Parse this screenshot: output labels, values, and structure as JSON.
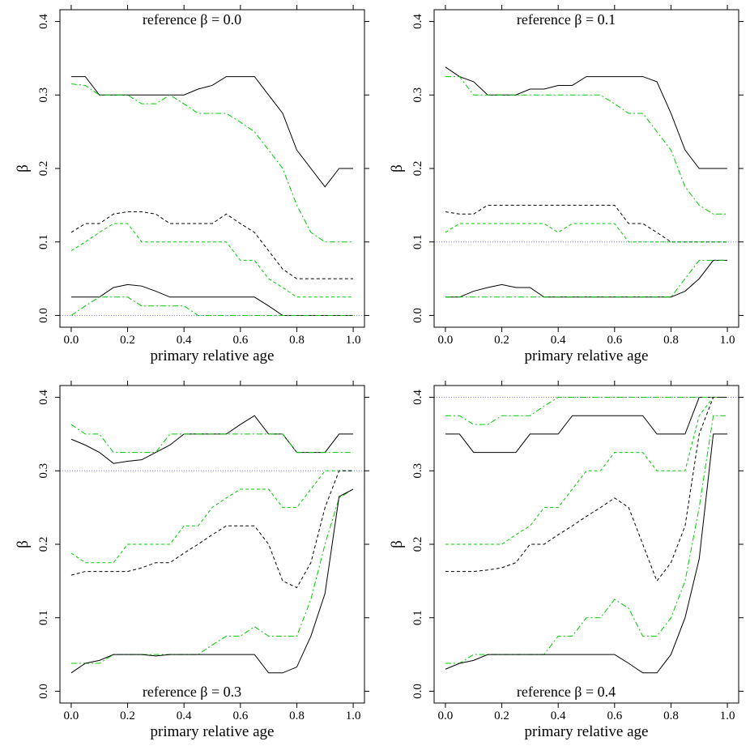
{
  "chart_data": [
    {
      "type": "line",
      "title": "reference β = 0.0",
      "title_position": "top",
      "xlabel": "primary relative age",
      "ylabel": "β",
      "x": [
        0,
        0.05,
        0.1,
        0.15,
        0.2,
        0.25,
        0.3,
        0.35,
        0.4,
        0.45,
        0.5,
        0.55,
        0.6,
        0.65,
        0.7,
        0.75,
        0.8,
        0.85,
        0.9,
        0.95,
        1
      ],
      "xlim": [
        -0.04,
        1.04
      ],
      "ylim": [
        -0.016,
        0.416
      ],
      "xticks": [
        {
          "value": 0,
          "label": "0.0"
        },
        {
          "value": 0.2,
          "label": "0.2"
        },
        {
          "value": 0.4,
          "label": "0.4"
        },
        {
          "value": 0.6,
          "label": "0.6"
        },
        {
          "value": 0.8,
          "label": "0.8"
        },
        {
          "value": 1,
          "label": "1.0"
        }
      ],
      "yticks": [
        {
          "value": 0,
          "label": "0.0"
        },
        0.1,
        0.2,
        0.3,
        0.4
      ],
      "reference_line": {
        "value": 0,
        "color": "#8080ff"
      },
      "series": [
        {
          "color": "#000000",
          "dash": "solid",
          "values": [
            0.325,
            0.325,
            0.3,
            0.3,
            0.3,
            0.3,
            0.3,
            0.3,
            0.3,
            0.308,
            0.313,
            0.325,
            0.325,
            0.325,
            0.3,
            0.275,
            0.225,
            0.2,
            0.175,
            0.2,
            0.2
          ]
        },
        {
          "color": "#00cc00",
          "dash": "dotdash",
          "values": [
            0.315,
            0.313,
            0.3,
            0.3,
            0.3,
            0.288,
            0.288,
            0.3,
            0.288,
            0.275,
            0.275,
            0.275,
            0.263,
            0.25,
            0.225,
            0.2,
            0.15,
            0.113,
            0.1,
            0.1,
            0.1
          ]
        },
        {
          "color": "#000000",
          "dash": "dashed",
          "values": [
            0.113,
            0.125,
            0.125,
            0.138,
            0.141,
            0.141,
            0.138,
            0.125,
            0.125,
            0.125,
            0.125,
            0.138,
            0.125,
            0.113,
            0.088,
            0.063,
            0.05,
            0.05,
            0.05,
            0.05,
            0.05
          ]
        },
        {
          "color": "#00cc00",
          "dash": "dashed",
          "values": [
            0.088,
            0.1,
            0.113,
            0.125,
            0.125,
            0.1,
            0.1,
            0.1,
            0.1,
            0.1,
            0.1,
            0.1,
            0.075,
            0.075,
            0.05,
            0.038,
            0.025,
            0.025,
            0.025,
            0.025,
            0.025
          ]
        },
        {
          "color": "#000000",
          "dash": "solid",
          "values": [
            0.025,
            0.025,
            0.025,
            0.038,
            0.042,
            0.04,
            0.033,
            0.025,
            0.025,
            0.025,
            0.025,
            0.025,
            0.025,
            0.025,
            0.013,
            0,
            0,
            0,
            0,
            0,
            0
          ]
        },
        {
          "color": "#00cc00",
          "dash": "dotdash",
          "values": [
            0,
            0.013,
            0.025,
            0.025,
            0.025,
            0.013,
            0.013,
            0.013,
            0.013,
            0,
            0,
            0,
            0,
            0,
            0,
            0,
            0,
            0,
            0,
            0,
            0
          ]
        }
      ]
    },
    {
      "type": "line",
      "title": "reference β = 0.1",
      "title_position": "top",
      "xlabel": "primary relative age",
      "ylabel": "β",
      "x": [
        0,
        0.05,
        0.1,
        0.15,
        0.2,
        0.25,
        0.3,
        0.35,
        0.4,
        0.45,
        0.5,
        0.55,
        0.6,
        0.65,
        0.7,
        0.75,
        0.8,
        0.85,
        0.9,
        0.95,
        1
      ],
      "xlim": [
        -0.04,
        1.04
      ],
      "ylim": [
        -0.016,
        0.416
      ],
      "xticks": [
        {
          "value": 0,
          "label": "0.0"
        },
        {
          "value": 0.2,
          "label": "0.2"
        },
        {
          "value": 0.4,
          "label": "0.4"
        },
        {
          "value": 0.6,
          "label": "0.6"
        },
        {
          "value": 0.8,
          "label": "0.8"
        },
        {
          "value": 1,
          "label": "1.0"
        }
      ],
      "yticks": [
        {
          "value": 0,
          "label": "0.0"
        },
        0.1,
        0.2,
        0.3,
        0.4
      ],
      "reference_line": {
        "value": 0.1,
        "color": "#8080ff"
      },
      "series": [
        {
          "color": "#000000",
          "dash": "solid",
          "values": [
            0.338,
            0.325,
            0.318,
            0.3,
            0.3,
            0.3,
            0.308,
            0.308,
            0.313,
            0.313,
            0.325,
            0.325,
            0.325,
            0.325,
            0.325,
            0.318,
            0.275,
            0.225,
            0.2,
            0.2,
            0.2
          ]
        },
        {
          "color": "#00cc00",
          "dash": "dotdash",
          "values": [
            0.325,
            0.325,
            0.3,
            0.3,
            0.3,
            0.3,
            0.3,
            0.3,
            0.3,
            0.3,
            0.3,
            0.3,
            0.288,
            0.275,
            0.275,
            0.25,
            0.225,
            0.175,
            0.15,
            0.138,
            0.138
          ]
        },
        {
          "color": "#000000",
          "dash": "dashed",
          "values": [
            0.141,
            0.138,
            0.138,
            0.15,
            0.15,
            0.15,
            0.15,
            0.15,
            0.15,
            0.15,
            0.15,
            0.15,
            0.15,
            0.125,
            0.125,
            0.113,
            0.1,
            0.1,
            0.1,
            0.1,
            0.1
          ]
        },
        {
          "color": "#00cc00",
          "dash": "dashed",
          "values": [
            0.113,
            0.125,
            0.125,
            0.125,
            0.125,
            0.125,
            0.125,
            0.125,
            0.113,
            0.125,
            0.125,
            0.125,
            0.125,
            0.1,
            0.1,
            0.1,
            0.1,
            0.1,
            0.1,
            0.1,
            0.1
          ]
        },
        {
          "color": "#000000",
          "dash": "solid",
          "values": [
            0.025,
            0.025,
            0.033,
            0.038,
            0.042,
            0.038,
            0.038,
            0.025,
            0.025,
            0.025,
            0.025,
            0.025,
            0.025,
            0.025,
            0.025,
            0.025,
            0.025,
            0.033,
            0.05,
            0.075,
            0.075
          ]
        },
        {
          "color": "#00cc00",
          "dash": "dotdash",
          "values": [
            0.025,
            0.025,
            0.025,
            0.025,
            0.025,
            0.025,
            0.025,
            0.025,
            0.025,
            0.025,
            0.025,
            0.025,
            0.025,
            0.025,
            0.025,
            0.025,
            0.025,
            0.05,
            0.075,
            0.075,
            0.075
          ]
        }
      ]
    },
    {
      "type": "line",
      "title": "reference β = 0.3",
      "title_position": "bottom",
      "xlabel": "primary relative age",
      "ylabel": "β",
      "x": [
        0,
        0.05,
        0.1,
        0.15,
        0.2,
        0.25,
        0.3,
        0.35,
        0.4,
        0.45,
        0.5,
        0.55,
        0.6,
        0.65,
        0.7,
        0.75,
        0.8,
        0.85,
        0.9,
        0.95,
        1
      ],
      "xlim": [
        -0.04,
        1.04
      ],
      "ylim": [
        -0.016,
        0.416
      ],
      "xticks": [
        {
          "value": 0,
          "label": "0.0"
        },
        {
          "value": 0.2,
          "label": "0.2"
        },
        {
          "value": 0.4,
          "label": "0.4"
        },
        {
          "value": 0.6,
          "label": "0.6"
        },
        {
          "value": 0.8,
          "label": "0.8"
        },
        {
          "value": 1,
          "label": "1.0"
        }
      ],
      "yticks": [
        {
          "value": 0,
          "label": "0.0"
        },
        0.1,
        0.2,
        0.3,
        0.4
      ],
      "reference_line": {
        "value": 0.3,
        "color": "#8080ff"
      },
      "series": [
        {
          "color": "#000000",
          "dash": "solid",
          "values": [
            0.343,
            0.335,
            0.325,
            0.31,
            0.313,
            0.315,
            0.325,
            0.335,
            0.35,
            0.35,
            0.35,
            0.35,
            0.363,
            0.375,
            0.35,
            0.35,
            0.325,
            0.325,
            0.325,
            0.35,
            0.35
          ]
        },
        {
          "color": "#00cc00",
          "dash": "dotdash",
          "values": [
            0.363,
            0.35,
            0.35,
            0.325,
            0.325,
            0.325,
            0.325,
            0.35,
            0.35,
            0.35,
            0.35,
            0.35,
            0.35,
            0.35,
            0.35,
            0.35,
            0.325,
            0.325,
            0.325,
            0.325,
            0.325
          ]
        },
        {
          "color": "#00cc00",
          "dash": "dashed",
          "values": [
            0.188,
            0.175,
            0.175,
            0.175,
            0.2,
            0.2,
            0.2,
            0.2,
            0.225,
            0.225,
            0.25,
            0.263,
            0.275,
            0.275,
            0.275,
            0.25,
            0.25,
            0.275,
            0.3,
            0.3,
            0.3
          ]
        },
        {
          "color": "#000000",
          "dash": "dashed",
          "values": [
            0.158,
            0.163,
            0.163,
            0.163,
            0.163,
            0.168,
            0.175,
            0.175,
            0.188,
            0.2,
            0.213,
            0.225,
            0.225,
            0.225,
            0.2,
            0.15,
            0.141,
            0.175,
            0.25,
            0.3,
            0.3
          ]
        },
        {
          "color": "#00cc00",
          "dash": "dotdash",
          "values": [
            0.038,
            0.038,
            0.038,
            0.05,
            0.05,
            0.05,
            0.05,
            0.05,
            0.05,
            0.05,
            0.063,
            0.075,
            0.075,
            0.088,
            0.075,
            0.075,
            0.075,
            0.125,
            0.2,
            0.263,
            0.275
          ]
        },
        {
          "color": "#000000",
          "dash": "solid",
          "values": [
            0.025,
            0.038,
            0.042,
            0.05,
            0.05,
            0.05,
            0.048,
            0.05,
            0.05,
            0.05,
            0.05,
            0.05,
            0.05,
            0.05,
            0.025,
            0.025,
            0.033,
            0.075,
            0.133,
            0.265,
            0.275
          ]
        }
      ]
    },
    {
      "type": "line",
      "title": "reference β = 0.4",
      "title_position": "bottom",
      "xlabel": "primary relative age",
      "ylabel": "β",
      "x": [
        0,
        0.05,
        0.1,
        0.15,
        0.2,
        0.25,
        0.3,
        0.35,
        0.4,
        0.45,
        0.5,
        0.55,
        0.6,
        0.65,
        0.7,
        0.75,
        0.8,
        0.85,
        0.9,
        0.95,
        1
      ],
      "xlim": [
        -0.04,
        1.04
      ],
      "ylim": [
        -0.016,
        0.416
      ],
      "xticks": [
        {
          "value": 0,
          "label": "0.0"
        },
        {
          "value": 0.2,
          "label": "0.2"
        },
        {
          "value": 0.4,
          "label": "0.4"
        },
        {
          "value": 0.6,
          "label": "0.6"
        },
        {
          "value": 0.8,
          "label": "0.8"
        },
        {
          "value": 1,
          "label": "1.0"
        }
      ],
      "yticks": [
        {
          "value": 0,
          "label": "0.0"
        },
        0.1,
        0.2,
        0.3,
        0.4
      ],
      "reference_line": {
        "value": 0.4,
        "color": "#8080ff"
      },
      "series": [
        {
          "color": "#000000",
          "dash": "solid",
          "values": [
            0.35,
            0.35,
            0.325,
            0.325,
            0.325,
            0.325,
            0.35,
            0.35,
            0.35,
            0.375,
            0.375,
            0.375,
            0.375,
            0.375,
            0.375,
            0.35,
            0.35,
            0.35,
            0.4,
            0.4,
            0.4
          ]
        },
        {
          "color": "#00cc00",
          "dash": "dotdash",
          "values": [
            0.375,
            0.375,
            0.363,
            0.363,
            0.375,
            0.375,
            0.375,
            0.388,
            0.4,
            0.4,
            0.4,
            0.4,
            0.4,
            0.4,
            0.4,
            0.4,
            0.4,
            0.4,
            0.4,
            0.4,
            0.4
          ]
        },
        {
          "color": "#00cc00",
          "dash": "dashed",
          "values": [
            0.2,
            0.2,
            0.2,
            0.2,
            0.2,
            0.213,
            0.225,
            0.25,
            0.25,
            0.275,
            0.3,
            0.3,
            0.325,
            0.325,
            0.325,
            0.3,
            0.3,
            0.3,
            0.375,
            0.4,
            0.4
          ]
        },
        {
          "color": "#000000",
          "dash": "dashed",
          "values": [
            0.163,
            0.163,
            0.163,
            0.165,
            0.168,
            0.175,
            0.2,
            0.2,
            0.213,
            0.225,
            0.238,
            0.25,
            0.263,
            0.25,
            0.2,
            0.15,
            0.175,
            0.225,
            0.35,
            0.4,
            0.4
          ]
        },
        {
          "color": "#00cc00",
          "dash": "dotdash",
          "values": [
            0.038,
            0.038,
            0.05,
            0.05,
            0.05,
            0.05,
            0.05,
            0.05,
            0.075,
            0.075,
            0.1,
            0.1,
            0.125,
            0.113,
            0.075,
            0.075,
            0.1,
            0.15,
            0.25,
            0.375,
            0.375
          ]
        },
        {
          "color": "#000000",
          "dash": "solid",
          "values": [
            0.03,
            0.038,
            0.042,
            0.05,
            0.05,
            0.05,
            0.05,
            0.05,
            0.05,
            0.05,
            0.05,
            0.05,
            0.05,
            0.038,
            0.025,
            0.025,
            0.05,
            0.1,
            0.18,
            0.35,
            0.35
          ]
        }
      ]
    }
  ]
}
